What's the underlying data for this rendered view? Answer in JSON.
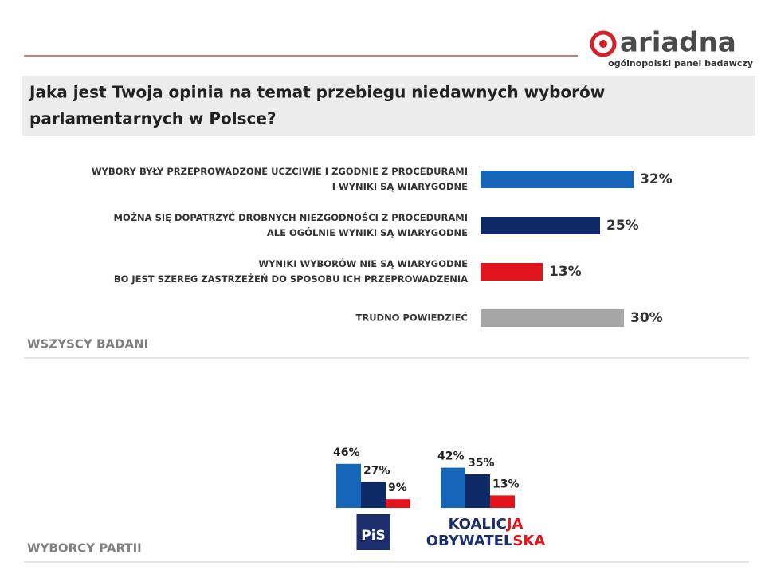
{
  "header": {
    "logo": "ariadna",
    "tagline": "ogólnopolski panel badawczy"
  },
  "question": [
    "Jaka jest Twoja opinia na temat przebiegu niedawnych wyborów",
    "parlamentarnych w Polsce?"
  ],
  "chart_data": [
    {
      "type": "hbar",
      "title": "WSZYSCY BADANI",
      "categories": [
        [
          "WYBORY BYŁY PRZEPROWADZONE UCZCIWIE I ZGODNIE Z PROCEDURAMI",
          "I WYNIKI SĄ WIARYGODNE"
        ],
        [
          "MOŻNA SIĘ DOPATRZYĆ DROBNYCH NIEZGODNOŚCI Z PROCEDURAMI",
          "ALE OGÓLNIE WYNIKI SĄ WIARYGODNE"
        ],
        [
          "WYNIKI WYBORÓW NIE SĄ WIARYGODNE",
          "BO JEST SZEREG ZASTRZEŻEŃ DO SPOSOBU ICH PRZEPROWADZENIA"
        ],
        [
          "TRUDNO POWIEDZIEĆ"
        ]
      ],
      "values": [
        32,
        25,
        13,
        30
      ],
      "value_labels": [
        "32%",
        "25%",
        "13%",
        "30%"
      ],
      "colors": [
        "#1565b8",
        "#0d2a66",
        "#e3141b",
        "#a6a6a6"
      ]
    },
    {
      "type": "grouped-bar",
      "title": "WYBORCY PARTII",
      "categories": [
        [
          [
            "PiS"
          ]
        ],
        [
          [
            "KOALIC",
            "JA"
          ],
          [
            "OBYWATEL",
            "SKA"
          ]
        ]
      ],
      "series": [
        {
          "color": "#1565b8",
          "values": [
            46,
            42
          ],
          "value_labels": [
            "46%",
            "42%"
          ]
        },
        {
          "color": "#0d2a66",
          "values": [
            27,
            35
          ],
          "value_labels": [
            "27%",
            "35%"
          ]
        },
        {
          "color": "#e3141b",
          "values": [
            9,
            13
          ],
          "value_labels": [
            "9%",
            "13%"
          ]
        }
      ]
    }
  ]
}
